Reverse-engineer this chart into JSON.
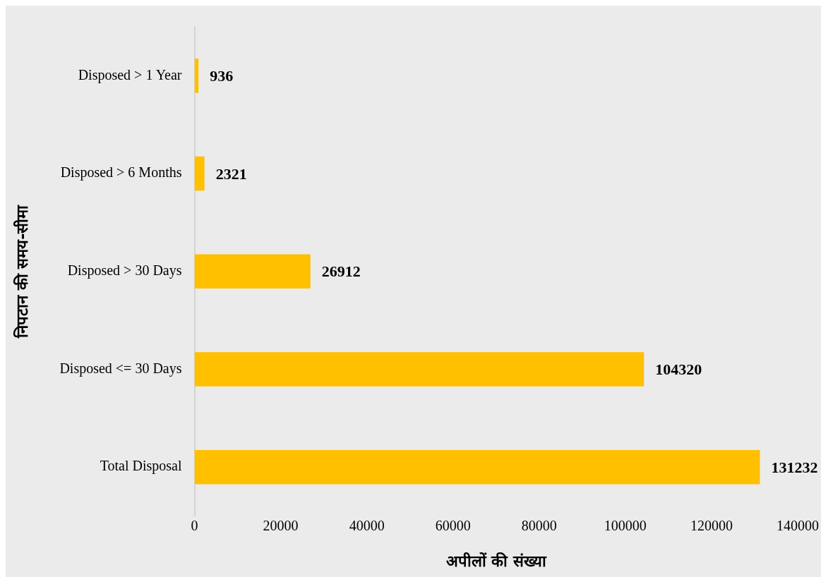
{
  "chart_data": {
    "type": "bar",
    "orientation": "horizontal",
    "xlabel": "अपीलों की संख्या",
    "ylabel": "निपटान की समय-सीमा",
    "categories": [
      "Disposed > 1 Year",
      "Disposed > 6 Months",
      "Disposed > 30 Days",
      "Disposed <= 30 Days",
      "Total Disposal"
    ],
    "values": [
      936,
      2321,
      26912,
      104320,
      131232
    ],
    "color": "#ffc000",
    "xlim": [
      0,
      140000
    ],
    "xticks": [
      0,
      20000,
      40000,
      60000,
      80000,
      100000,
      120000,
      140000
    ],
    "data_labels": true
  }
}
